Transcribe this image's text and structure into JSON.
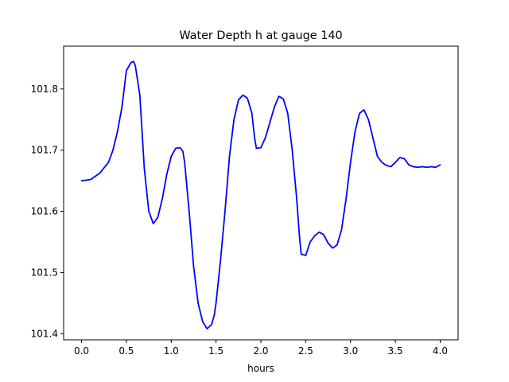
{
  "chart_data": {
    "type": "line",
    "title": "Water Depth h at gauge 140",
    "xlabel": "hours",
    "ylabel": "",
    "xlim": [
      -0.2,
      4.2
    ],
    "ylim": [
      101.39,
      101.87
    ],
    "xticks": [
      0.0,
      0.5,
      1.0,
      1.5,
      2.0,
      2.5,
      3.0,
      3.5,
      4.0
    ],
    "xtick_labels": [
      "0.0",
      "0.5",
      "1.0",
      "1.5",
      "2.0",
      "2.5",
      "3.0",
      "3.5",
      "4.0"
    ],
    "yticks": [
      101.4,
      101.5,
      101.6,
      101.7,
      101.8
    ],
    "ytick_labels": [
      "101.4",
      "101.5",
      "101.6",
      "101.7",
      "101.8"
    ],
    "grid": false,
    "series": [
      {
        "color": "#0000ff",
        "x": [
          0.0,
          0.1,
          0.2,
          0.3,
          0.35,
          0.4,
          0.45,
          0.5,
          0.55,
          0.58,
          0.6,
          0.65,
          0.7,
          0.75,
          0.8,
          0.85,
          0.9,
          0.95,
          1.0,
          1.05,
          1.1,
          1.13,
          1.15,
          1.2,
          1.25,
          1.3,
          1.35,
          1.4,
          1.45,
          1.48,
          1.5,
          1.55,
          1.6,
          1.65,
          1.7,
          1.75,
          1.8,
          1.85,
          1.9,
          1.93,
          1.95,
          2.0,
          2.05,
          2.1,
          2.15,
          2.2,
          2.25,
          2.3,
          2.35,
          2.4,
          2.43,
          2.45,
          2.5,
          2.55,
          2.6,
          2.65,
          2.7,
          2.75,
          2.8,
          2.85,
          2.9,
          2.95,
          3.0,
          3.05,
          3.1,
          3.15,
          3.2,
          3.25,
          3.3,
          3.35,
          3.4,
          3.45,
          3.5,
          3.55,
          3.6,
          3.65,
          3.7,
          3.75,
          3.8,
          3.85,
          3.9,
          3.95,
          4.0
        ],
        "y": [
          101.65,
          101.652,
          101.662,
          101.68,
          101.7,
          101.73,
          101.77,
          101.83,
          101.843,
          101.845,
          101.838,
          101.79,
          101.67,
          101.6,
          101.58,
          101.59,
          101.62,
          101.66,
          101.69,
          101.703,
          101.704,
          101.698,
          101.68,
          101.6,
          101.51,
          101.45,
          101.42,
          101.408,
          101.415,
          101.43,
          101.45,
          101.52,
          101.6,
          101.69,
          101.75,
          101.782,
          101.79,
          101.785,
          101.76,
          101.72,
          101.703,
          101.704,
          101.72,
          101.745,
          101.77,
          101.788,
          101.784,
          101.76,
          101.7,
          101.62,
          101.56,
          101.53,
          101.528,
          101.55,
          101.56,
          101.566,
          101.562,
          101.548,
          101.54,
          101.545,
          101.57,
          101.62,
          101.68,
          101.73,
          101.76,
          101.766,
          101.75,
          101.72,
          101.69,
          101.68,
          101.675,
          101.673,
          101.68,
          101.688,
          101.686,
          101.676,
          101.673,
          101.672,
          101.673,
          101.672,
          101.673,
          101.672,
          101.676
        ]
      }
    ]
  }
}
